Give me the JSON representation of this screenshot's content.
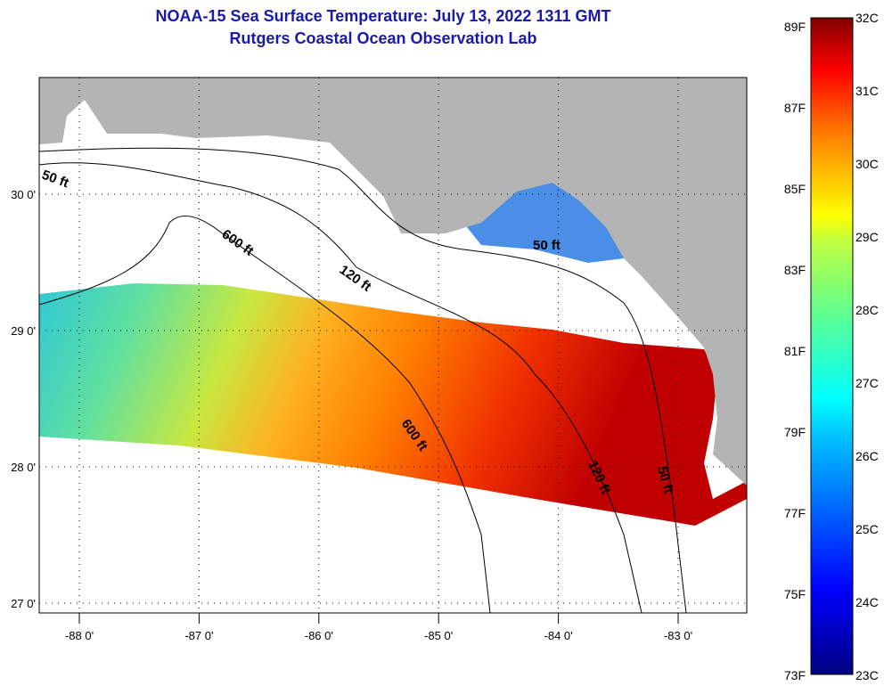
{
  "title": {
    "line1": "NOAA-15 Sea Surface Temperature:  July 13, 2022 1311 GMT",
    "line2": "Rutgers Coastal Ocean Observation Lab"
  },
  "map": {
    "lon_ticks": [
      {
        "value": -88,
        "label": "-88 0'"
      },
      {
        "value": -87,
        "label": "-87 0'"
      },
      {
        "value": -86,
        "label": "-86 0'"
      },
      {
        "value": -85,
        "label": "-85 0'"
      },
      {
        "value": -84,
        "label": "-84 0'"
      },
      {
        "value": -83,
        "label": "-83 0'"
      }
    ],
    "lat_ticks": [
      {
        "value": 30,
        "label": "30 0'"
      },
      {
        "value": 29,
        "label": "29 0'"
      },
      {
        "value": 28,
        "label": "28 0'"
      },
      {
        "value": 27,
        "label": "27 0'"
      }
    ],
    "contour_labels": [
      "50 ft",
      "600 ft",
      "120 ft",
      "50 ft",
      "600 ft",
      "120 ft",
      "50 ft"
    ],
    "land_color": "#b4b4b4"
  },
  "colorbar": {
    "f_labels": [
      "89F",
      "87F",
      "85F",
      "83F",
      "81F",
      "79F",
      "77F",
      "75F",
      "73F"
    ],
    "c_labels": [
      "32C",
      "31C",
      "30C",
      "29C",
      "28C",
      "27C",
      "26C",
      "25C",
      "24C",
      "23C"
    ],
    "range_c": [
      23,
      32
    ]
  }
}
